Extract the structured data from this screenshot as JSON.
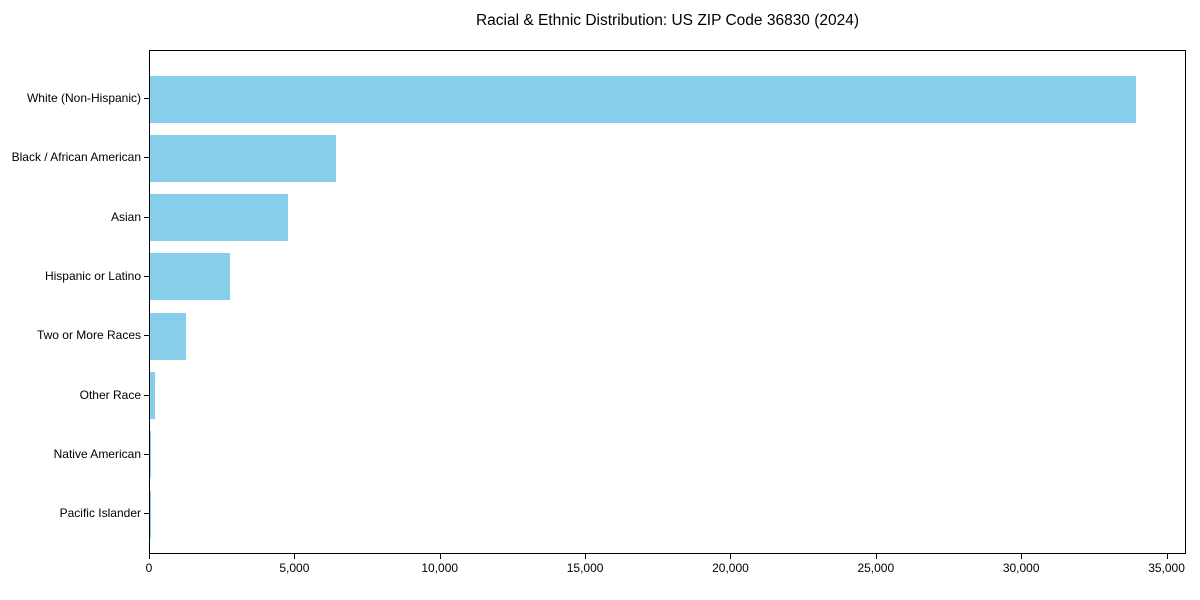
{
  "chart_data": {
    "type": "bar",
    "orientation": "horizontal",
    "title": "Racial & Ethnic Distribution: US ZIP Code 36830 (2024)",
    "categories": [
      "White (Non-Hispanic)",
      "Black / African American",
      "Asian",
      "Hispanic or Latino",
      "Two or More Races",
      "Other Race",
      "Native American",
      "Pacific Islander"
    ],
    "values": [
      33900,
      6390,
      4740,
      2750,
      1250,
      170,
      30,
      10
    ],
    "xlabel": "",
    "ylabel": "",
    "xlim": [
      0,
      35600
    ],
    "x_ticks": [
      0,
      5000,
      10000,
      15000,
      20000,
      25000,
      30000,
      35000
    ],
    "x_tick_labels": [
      "0",
      "5,000",
      "10,000",
      "15,000",
      "20,000",
      "25,000",
      "30,000",
      "35,000"
    ],
    "bar_color": "#87CEEB",
    "grid": false,
    "legend": null
  },
  "colors": {
    "background": "#FFFFFF",
    "spine": "#000000",
    "text": "#000000",
    "bar": "#87CEEB"
  }
}
